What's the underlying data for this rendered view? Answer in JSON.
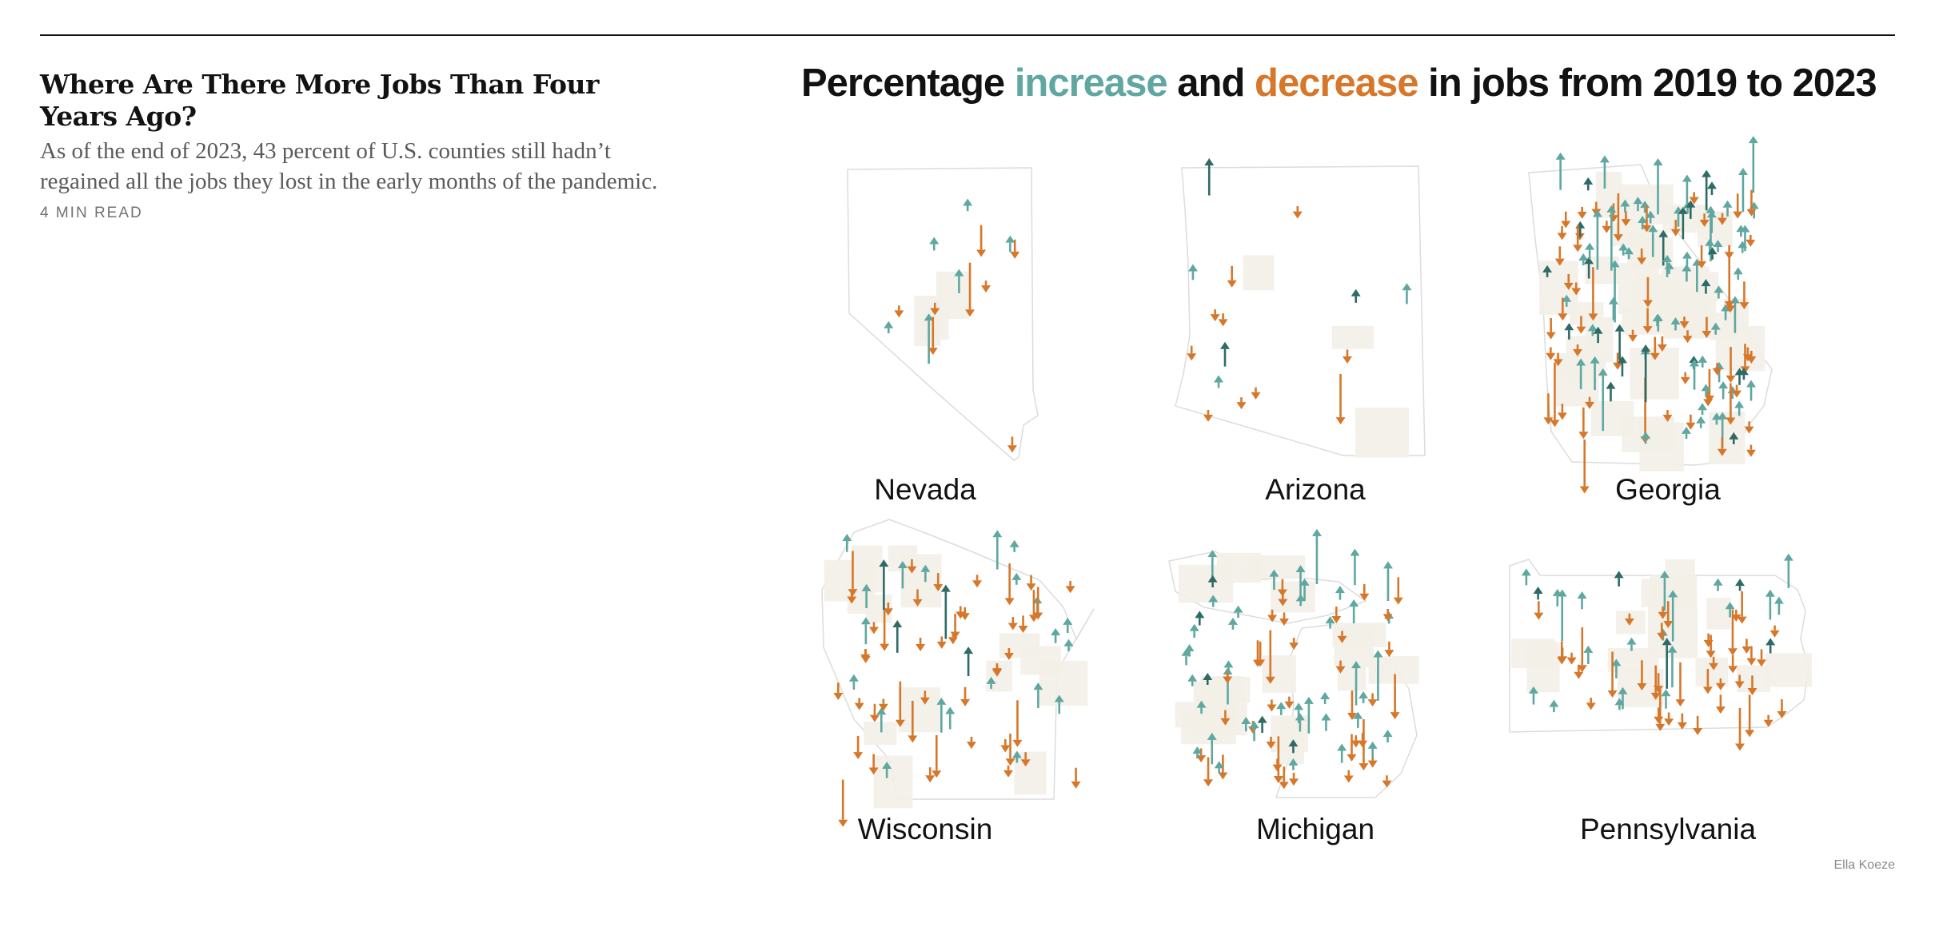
{
  "story": {
    "headline": "Where Are There More Jobs Than Four Years Ago?",
    "summary": "As of the end of 2023, 43 percent of U.S. counties still hadn’t regained all the jobs they lost in the early months of the pandemic.",
    "read_time": "4 MIN READ"
  },
  "graphic": {
    "title_prefix": "Percentage ",
    "title_increase": "increase",
    "title_and": " and ",
    "title_decrease": "decrease",
    "title_suffix": " in jobs from 2019 to 2023",
    "colors": {
      "increase": "#5fa7a0",
      "increase_dark": "#2e6a66",
      "decrease": "#d7772a",
      "land": "#f3efe8",
      "border": "#dcdcdc"
    },
    "states": [
      {
        "name": "Nevada"
      },
      {
        "name": "Arizona"
      },
      {
        "name": "Georgia"
      },
      {
        "name": "Wisconsin"
      },
      {
        "name": "Michigan"
      },
      {
        "name": "Pennsylvania"
      }
    ],
    "credit": "Ella Koeze"
  }
}
